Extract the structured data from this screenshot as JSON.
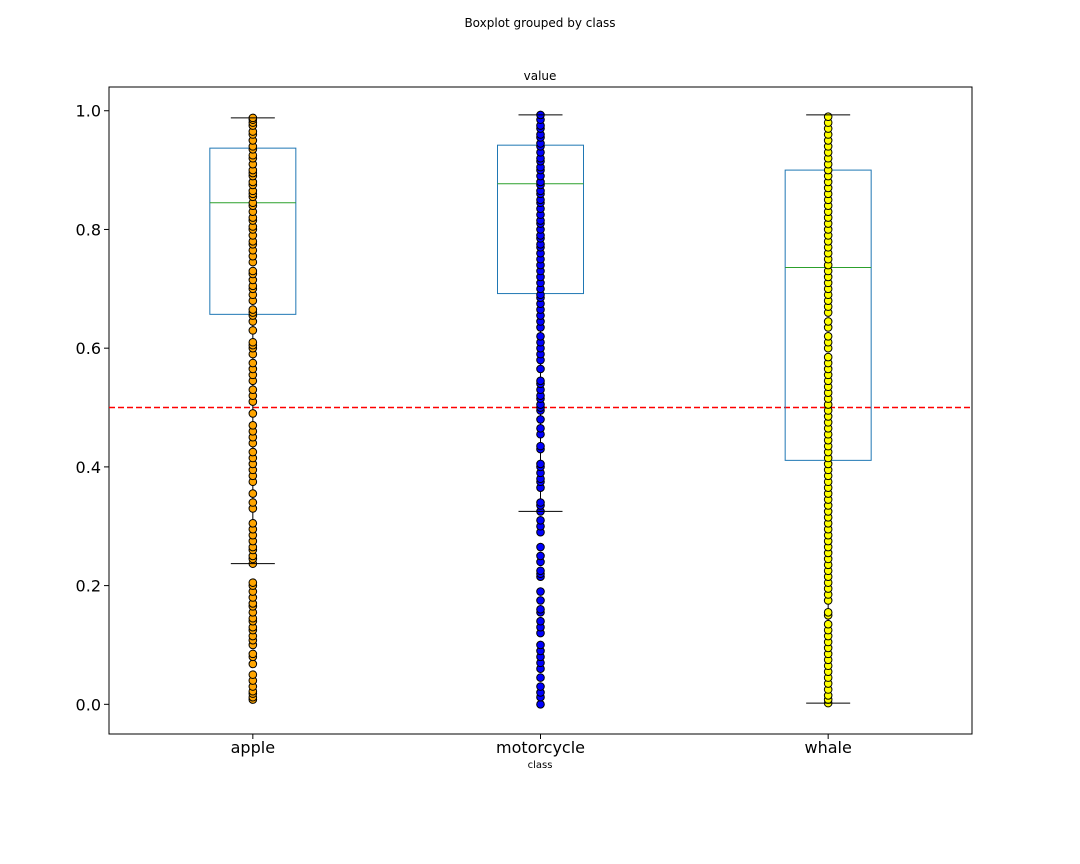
{
  "chart_data": {
    "type": "boxplot",
    "suptitle": "Boxplot grouped by class",
    "title": "value",
    "xlabel": "class",
    "ylabel": "",
    "ylim": [
      -0.05,
      1.04
    ],
    "yticks": [
      0.0,
      0.2,
      0.4,
      0.6,
      0.8,
      1.0
    ],
    "ytick_labels": [
      "0.0",
      "0.2",
      "0.4",
      "0.6",
      "0.8",
      "1.0"
    ],
    "categories": [
      "apple",
      "motorcycle",
      "whale"
    ],
    "threshold": {
      "value": 0.5,
      "color": "#ff0000",
      "style": "dashed"
    },
    "box_color": "#1f77b4",
    "median_color": "#2ca02c",
    "boxes": [
      {
        "name": "apple",
        "whisker_low": 0.237,
        "q1": 0.657,
        "median": 0.845,
        "q3": 0.937,
        "whisker_high": 0.988,
        "point_color": "#ffa500",
        "points": [
          0.008,
          0.012,
          0.018,
          0.022,
          0.03,
          0.04,
          0.05,
          0.068,
          0.08,
          0.085,
          0.1,
          0.108,
          0.115,
          0.125,
          0.13,
          0.14,
          0.145,
          0.155,
          0.165,
          0.17,
          0.18,
          0.19,
          0.2,
          0.205,
          0.237,
          0.245,
          0.25,
          0.26,
          0.265,
          0.275,
          0.285,
          0.295,
          0.305,
          0.33,
          0.34,
          0.355,
          0.375,
          0.385,
          0.395,
          0.405,
          0.415,
          0.425,
          0.44,
          0.45,
          0.46,
          0.47,
          0.49,
          0.51,
          0.52,
          0.53,
          0.545,
          0.555,
          0.565,
          0.575,
          0.59,
          0.6,
          0.605,
          0.61,
          0.63,
          0.645,
          0.655,
          0.66,
          0.665,
          0.68,
          0.69,
          0.7,
          0.705,
          0.715,
          0.725,
          0.73,
          0.745,
          0.755,
          0.765,
          0.775,
          0.78,
          0.79,
          0.8,
          0.805,
          0.815,
          0.82,
          0.83,
          0.84,
          0.845,
          0.855,
          0.86,
          0.865,
          0.875,
          0.88,
          0.89,
          0.895,
          0.9,
          0.91,
          0.92,
          0.925,
          0.935,
          0.94,
          0.95,
          0.96,
          0.965,
          0.975,
          0.98,
          0.985,
          0.988
        ]
      },
      {
        "name": "motorcycle",
        "whisker_low": 0.325,
        "q1": 0.692,
        "median": 0.877,
        "q3": 0.942,
        "whisker_high": 0.993,
        "point_color": "#0000ff",
        "points": [
          0.0,
          0.012,
          0.02,
          0.03,
          0.045,
          0.06,
          0.07,
          0.08,
          0.09,
          0.1,
          0.12,
          0.13,
          0.14,
          0.155,
          0.16,
          0.175,
          0.19,
          0.215,
          0.22,
          0.225,
          0.24,
          0.25,
          0.265,
          0.29,
          0.3,
          0.31,
          0.325,
          0.335,
          0.34,
          0.365,
          0.375,
          0.38,
          0.39,
          0.4,
          0.405,
          0.43,
          0.435,
          0.455,
          0.465,
          0.48,
          0.495,
          0.5,
          0.505,
          0.515,
          0.52,
          0.53,
          0.54,
          0.545,
          0.565,
          0.58,
          0.59,
          0.6,
          0.61,
          0.62,
          0.635,
          0.645,
          0.655,
          0.665,
          0.675,
          0.685,
          0.69,
          0.7,
          0.71,
          0.72,
          0.73,
          0.74,
          0.75,
          0.76,
          0.77,
          0.775,
          0.785,
          0.79,
          0.8,
          0.81,
          0.815,
          0.825,
          0.835,
          0.845,
          0.85,
          0.86,
          0.865,
          0.875,
          0.88,
          0.89,
          0.9,
          0.905,
          0.915,
          0.92,
          0.93,
          0.94,
          0.945,
          0.955,
          0.96,
          0.97,
          0.975,
          0.985,
          0.993
        ]
      },
      {
        "name": "whale",
        "whisker_low": 0.002,
        "q1": 0.411,
        "median": 0.736,
        "q3": 0.9,
        "whisker_high": 0.993,
        "point_color": "#ffff00",
        "points": [
          0.002,
          0.008,
          0.015,
          0.025,
          0.035,
          0.045,
          0.055,
          0.065,
          0.075,
          0.085,
          0.095,
          0.105,
          0.115,
          0.125,
          0.135,
          0.15,
          0.155,
          0.175,
          0.185,
          0.195,
          0.205,
          0.215,
          0.225,
          0.235,
          0.245,
          0.255,
          0.265,
          0.275,
          0.285,
          0.295,
          0.305,
          0.315,
          0.325,
          0.335,
          0.345,
          0.355,
          0.365,
          0.375,
          0.385,
          0.395,
          0.405,
          0.415,
          0.425,
          0.435,
          0.445,
          0.455,
          0.465,
          0.475,
          0.485,
          0.495,
          0.505,
          0.515,
          0.525,
          0.535,
          0.545,
          0.555,
          0.565,
          0.575,
          0.585,
          0.6,
          0.61,
          0.62,
          0.635,
          0.645,
          0.66,
          0.67,
          0.68,
          0.69,
          0.7,
          0.71,
          0.72,
          0.73,
          0.74,
          0.75,
          0.76,
          0.77,
          0.78,
          0.79,
          0.8,
          0.81,
          0.82,
          0.83,
          0.84,
          0.85,
          0.86,
          0.87,
          0.88,
          0.89,
          0.9,
          0.91,
          0.92,
          0.93,
          0.94,
          0.95,
          0.96,
          0.97,
          0.98,
          0.99
        ]
      }
    ]
  }
}
